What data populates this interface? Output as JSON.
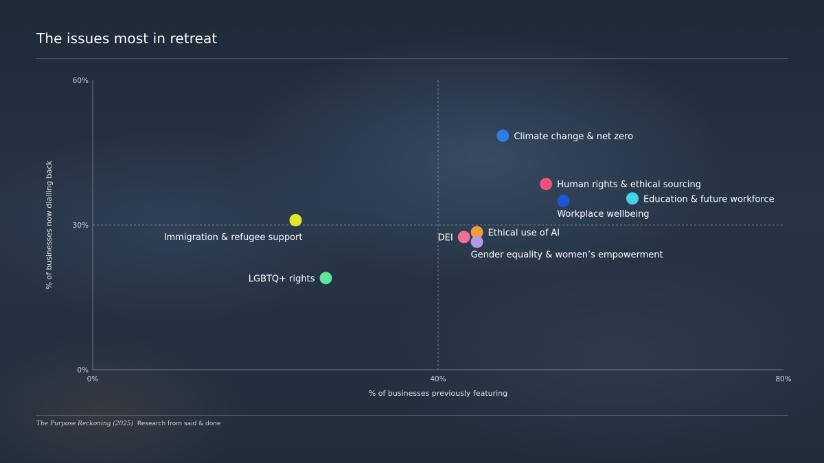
{
  "title": "The issues most in retreat",
  "source": {
    "publication": "The Purpose Reckoning (2025)",
    "note": "Research from said & done"
  },
  "chart_data": {
    "type": "scatter",
    "title": "The issues most in retreat",
    "xlabel": "% of businesses previously featuring",
    "ylabel": "% of businesses now dialling back",
    "xlim": [
      0,
      80
    ],
    "ylim": [
      0,
      60
    ],
    "x_ticks": [
      0,
      40,
      80
    ],
    "y_ticks": [
      0,
      30,
      60
    ],
    "x_tick_labels": [
      "0%",
      "40%",
      "80%"
    ],
    "y_tick_labels": [
      "0%",
      "30%",
      "60%"
    ],
    "reference_lines": {
      "x": 40,
      "y": 30
    },
    "grid": false,
    "legend": "none",
    "points": [
      {
        "label": "Climate change & net zero",
        "x": 47.5,
        "y": 48.5,
        "color": "#2f7de0",
        "label_side": "right"
      },
      {
        "label": "Human rights & ethical sourcing",
        "x": 52.5,
        "y": 38.5,
        "color": "#f0507a",
        "label_side": "right"
      },
      {
        "label": "Education & future workforce",
        "x": 62.5,
        "y": 35.5,
        "color": "#3fd6ea",
        "label_side": "right"
      },
      {
        "label": "Workplace wellbeing",
        "x": 54.5,
        "y": 35.0,
        "color": "#1f56d6",
        "label_side": "below-right"
      },
      {
        "label": "Immigration & refugee support",
        "x": 23.5,
        "y": 31.0,
        "color": "#e6e62a",
        "label_side": "below-left"
      },
      {
        "label": "Ethical use of AI",
        "x": 44.5,
        "y": 28.5,
        "color": "#f39a3a",
        "label_side": "right"
      },
      {
        "label": "DEI",
        "x": 43.0,
        "y": 27.5,
        "color": "#f06f95",
        "label_side": "left"
      },
      {
        "label": "Gender equality & women’s empowerment",
        "x": 44.5,
        "y": 26.5,
        "color": "#b19ae6",
        "label_side": "below-right"
      },
      {
        "label": "LGBTQ+ rights",
        "x": 27.0,
        "y": 19.0,
        "color": "#5ee59a",
        "label_side": "left"
      }
    ]
  }
}
